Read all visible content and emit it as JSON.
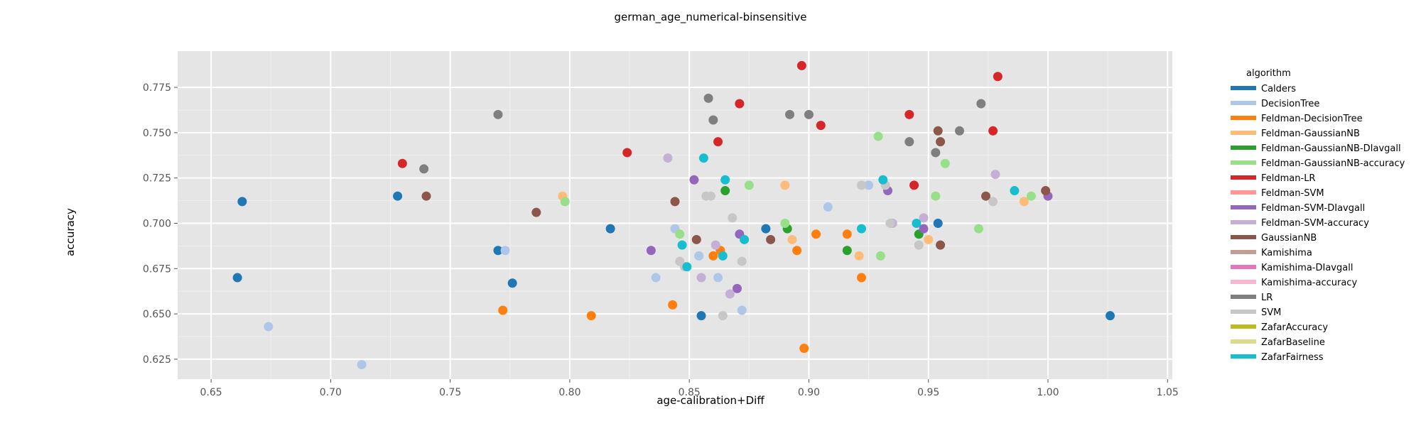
{
  "chart_data": {
    "type": "scatter",
    "title": "german_age_numerical-binsensitive",
    "xlabel": "age-calibration+Diff",
    "ylabel": "accuracy",
    "xlim": [
      0.636,
      1.052
    ],
    "ylim": [
      0.614,
      0.795
    ],
    "xticks": [
      "0.65",
      "0.70",
      "0.75",
      "0.80",
      "0.85",
      "0.90",
      "0.95",
      "1.00",
      "1.05"
    ],
    "yticks": [
      "0.625",
      "0.650",
      "0.675",
      "0.700",
      "0.725",
      "0.750",
      "0.775"
    ],
    "grid": true,
    "legend_title": "algorithm",
    "legend_position": "right",
    "series": [
      {
        "name": "Calders",
        "color": "#1f77b4",
        "points": [
          [
            0.663,
            0.712
          ],
          [
            0.661,
            0.67
          ],
          [
            0.728,
            0.715
          ],
          [
            0.77,
            0.685
          ],
          [
            0.776,
            0.667
          ],
          [
            0.817,
            0.697
          ],
          [
            0.855,
            0.649
          ],
          [
            0.882,
            0.697
          ],
          [
            0.954,
            0.7
          ],
          [
            1.026,
            0.649
          ]
        ]
      },
      {
        "name": "DecisionTree",
        "color": "#aec7e8",
        "points": [
          [
            0.674,
            0.643
          ],
          [
            0.713,
            0.622
          ],
          [
            0.773,
            0.685
          ],
          [
            0.836,
            0.67
          ],
          [
            0.844,
            0.697
          ],
          [
            0.854,
            0.682
          ],
          [
            0.862,
            0.67
          ],
          [
            0.872,
            0.652
          ],
          [
            0.908,
            0.709
          ],
          [
            0.925,
            0.721
          ]
        ]
      },
      {
        "name": "Feldman-DecisionTree",
        "color": "#ff7f0e",
        "points": [
          [
            0.772,
            0.652
          ],
          [
            0.809,
            0.649
          ],
          [
            0.843,
            0.655
          ],
          [
            0.86,
            0.682
          ],
          [
            0.863,
            0.685
          ],
          [
            0.895,
            0.685
          ],
          [
            0.898,
            0.631
          ],
          [
            0.903,
            0.694
          ],
          [
            0.916,
            0.694
          ],
          [
            0.922,
            0.67
          ]
        ]
      },
      {
        "name": "Feldman-GaussianNB",
        "color": "#ffbb78",
        "points": [
          [
            0.797,
            0.715
          ],
          [
            0.89,
            0.721
          ],
          [
            0.893,
            0.691
          ],
          [
            0.921,
            0.682
          ],
          [
            0.95,
            0.691
          ],
          [
            0.99,
            0.712
          ]
        ]
      },
      {
        "name": "Feldman-GaussianNB-DIavgall",
        "color": "#2ca02c",
        "points": [
          [
            0.865,
            0.718
          ],
          [
            0.891,
            0.697
          ],
          [
            0.916,
            0.685
          ],
          [
            0.946,
            0.694
          ]
        ]
      },
      {
        "name": "Feldman-GaussianNB-accuracy",
        "color": "#98df8a",
        "points": [
          [
            0.798,
            0.712
          ],
          [
            0.846,
            0.694
          ],
          [
            0.875,
            0.721
          ],
          [
            0.89,
            0.7
          ],
          [
            0.929,
            0.748
          ],
          [
            0.93,
            0.682
          ],
          [
            0.953,
            0.715
          ],
          [
            0.957,
            0.733
          ],
          [
            0.971,
            0.697
          ],
          [
            0.993,
            0.715
          ]
        ]
      },
      {
        "name": "Feldman-LR",
        "color": "#d62728",
        "points": [
          [
            0.73,
            0.733
          ],
          [
            0.824,
            0.739
          ],
          [
            0.862,
            0.745
          ],
          [
            0.871,
            0.766
          ],
          [
            0.897,
            0.787
          ],
          [
            0.905,
            0.754
          ],
          [
            0.942,
            0.76
          ],
          [
            0.944,
            0.721
          ],
          [
            0.977,
            0.751
          ],
          [
            0.979,
            0.781
          ]
        ]
      },
      {
        "name": "Feldman-SVM",
        "color": "#ff9896",
        "points": []
      },
      {
        "name": "Feldman-SVM-DIavgall",
        "color": "#9467bd",
        "points": [
          [
            0.834,
            0.685
          ],
          [
            0.852,
            0.724
          ],
          [
            0.87,
            0.664
          ],
          [
            0.871,
            0.694
          ],
          [
            0.933,
            0.718
          ],
          [
            0.948,
            0.697
          ],
          [
            1.0,
            0.715
          ]
        ]
      },
      {
        "name": "Feldman-SVM-accuracy",
        "color": "#c5b0d5",
        "points": [
          [
            0.841,
            0.736
          ],
          [
            0.855,
            0.67
          ],
          [
            0.861,
            0.688
          ],
          [
            0.867,
            0.661
          ],
          [
            0.935,
            0.7
          ],
          [
            0.948,
            0.703
          ],
          [
            0.978,
            0.727
          ]
        ]
      },
      {
        "name": "GaussianNB",
        "color": "#8c564b",
        "points": [
          [
            0.74,
            0.715
          ],
          [
            0.786,
            0.706
          ],
          [
            0.844,
            0.712
          ],
          [
            0.853,
            0.691
          ],
          [
            0.884,
            0.691
          ],
          [
            0.954,
            0.751
          ],
          [
            0.955,
            0.745
          ],
          [
            0.955,
            0.688
          ],
          [
            0.974,
            0.715
          ],
          [
            0.999,
            0.718
          ]
        ]
      },
      {
        "name": "Kamishima",
        "color": "#c49c94",
        "points": []
      },
      {
        "name": "Kamishima-DIavgall",
        "color": "#e377c2",
        "points": []
      },
      {
        "name": "Kamishima-accuracy",
        "color": "#f7b6d2",
        "points": []
      },
      {
        "name": "LR",
        "color": "#7f7f7f",
        "points": [
          [
            0.739,
            0.73
          ],
          [
            0.77,
            0.76
          ],
          [
            0.858,
            0.769
          ],
          [
            0.86,
            0.757
          ],
          [
            0.892,
            0.76
          ],
          [
            0.9,
            0.76
          ],
          [
            0.942,
            0.745
          ],
          [
            0.953,
            0.739
          ],
          [
            0.963,
            0.751
          ],
          [
            0.972,
            0.766
          ]
        ]
      },
      {
        "name": "SVM",
        "color": "#c7c7c7",
        "points": [
          [
            0.846,
            0.679
          ],
          [
            0.848,
            0.676
          ],
          [
            0.857,
            0.715
          ],
          [
            0.859,
            0.715
          ],
          [
            0.864,
            0.649
          ],
          [
            0.868,
            0.703
          ],
          [
            0.872,
            0.679
          ],
          [
            0.922,
            0.721
          ],
          [
            0.932,
            0.721
          ],
          [
            0.934,
            0.7
          ],
          [
            0.946,
            0.688
          ],
          [
            0.977,
            0.712
          ]
        ]
      },
      {
        "name": "ZafarAccuracy",
        "color": "#bcbd22",
        "points": []
      },
      {
        "name": "ZafarBaseline",
        "color": "#dbdb8d",
        "points": []
      },
      {
        "name": "ZafarFairness",
        "color": "#17becf",
        "points": [
          [
            0.847,
            0.688
          ],
          [
            0.849,
            0.676
          ],
          [
            0.856,
            0.736
          ],
          [
            0.864,
            0.682
          ],
          [
            0.865,
            0.724
          ],
          [
            0.873,
            0.691
          ],
          [
            0.922,
            0.697
          ],
          [
            0.931,
            0.724
          ],
          [
            0.945,
            0.7
          ],
          [
            0.986,
            0.718
          ]
        ]
      }
    ]
  }
}
